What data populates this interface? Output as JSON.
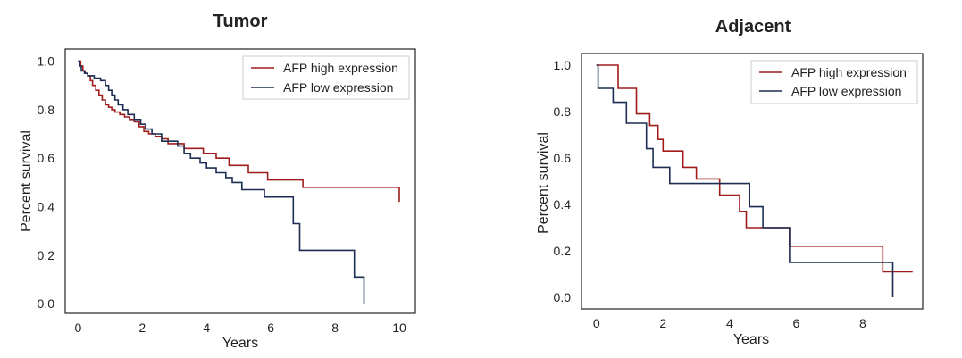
{
  "chart_data": [
    {
      "type": "line",
      "title": "Tumor",
      "xlabel": "Years",
      "ylabel": "Percent survival",
      "xlim": [
        -0.4,
        10.5
      ],
      "ylim": [
        -0.04,
        1.05
      ],
      "xticks": [
        "0",
        "2",
        "4",
        "6",
        "8",
        "10"
      ],
      "yticks": [
        "0.0",
        "0.2",
        "0.4",
        "0.6",
        "0.8",
        "1.0"
      ],
      "grid": false,
      "legend": "top-right",
      "series": [
        {
          "name": "AFP high expression",
          "color": "#a01c1c",
          "x": [
            0,
            0.08,
            0.15,
            0.22,
            0.3,
            0.38,
            0.45,
            0.55,
            0.65,
            0.75,
            0.85,
            0.95,
            1.05,
            1.15,
            1.3,
            1.45,
            1.6,
            1.75,
            1.9,
            2.05,
            2.2,
            2.4,
            2.6,
            2.8,
            3.3,
            3.9,
            4.3,
            4.7,
            5.3,
            5.9,
            7.0,
            10.0
          ],
          "y": [
            1.0,
            0.98,
            0.96,
            0.95,
            0.94,
            0.92,
            0.9,
            0.88,
            0.86,
            0.84,
            0.82,
            0.81,
            0.8,
            0.79,
            0.78,
            0.77,
            0.76,
            0.75,
            0.73,
            0.71,
            0.7,
            0.69,
            0.68,
            0.66,
            0.64,
            0.62,
            0.6,
            0.57,
            0.54,
            0.51,
            0.48,
            0.42
          ]
        },
        {
          "name": "AFP low expression",
          "color": "#1b2d52",
          "x": [
            0,
            0.05,
            0.1,
            0.2,
            0.3,
            0.5,
            0.7,
            0.85,
            0.95,
            1.05,
            1.15,
            1.25,
            1.4,
            1.55,
            1.75,
            1.95,
            2.1,
            2.3,
            2.6,
            3.1,
            3.3,
            3.5,
            3.8,
            4.0,
            4.3,
            4.6,
            4.8,
            5.1,
            5.8,
            6.7,
            6.9,
            8.6,
            8.9,
            8.9
          ],
          "y": [
            1.0,
            0.98,
            0.96,
            0.95,
            0.94,
            0.93,
            0.92,
            0.9,
            0.88,
            0.86,
            0.84,
            0.82,
            0.8,
            0.78,
            0.76,
            0.74,
            0.72,
            0.7,
            0.67,
            0.65,
            0.62,
            0.6,
            0.58,
            0.56,
            0.54,
            0.52,
            0.5,
            0.47,
            0.44,
            0.33,
            0.22,
            0.11,
            0.11,
            0.0
          ]
        }
      ]
    },
    {
      "type": "line",
      "title": "Adjacent",
      "xlabel": "Years",
      "ylabel": "Percent survival",
      "xlim": [
        -0.45,
        9.8
      ],
      "ylim": [
        -0.05,
        1.05
      ],
      "xticks": [
        "0",
        "2",
        "4",
        "6",
        "8"
      ],
      "yticks": [
        "0.0",
        "0.2",
        "0.4",
        "0.6",
        "0.8",
        "1.0"
      ],
      "grid": false,
      "legend": "top-right",
      "series": [
        {
          "name": "AFP high expression",
          "color": "#a01c1c",
          "x": [
            0,
            0.65,
            0.8,
            1.2,
            1.6,
            1.85,
            2.0,
            2.6,
            3.0,
            3.7,
            4.3,
            4.5,
            5.8,
            8.6,
            9.5
          ],
          "y": [
            1.0,
            0.9,
            0.9,
            0.79,
            0.74,
            0.68,
            0.63,
            0.56,
            0.51,
            0.44,
            0.37,
            0.3,
            0.22,
            0.11,
            0.11
          ]
        },
        {
          "name": "AFP low expression",
          "color": "#1b2d52",
          "x": [
            0,
            0.05,
            0.5,
            0.9,
            1.5,
            1.7,
            2.2,
            4.6,
            5.0,
            5.8,
            8.9,
            8.9
          ],
          "y": [
            1.0,
            0.9,
            0.84,
            0.75,
            0.64,
            0.56,
            0.49,
            0.39,
            0.3,
            0.15,
            0.15,
            0.0
          ]
        }
      ]
    }
  ]
}
